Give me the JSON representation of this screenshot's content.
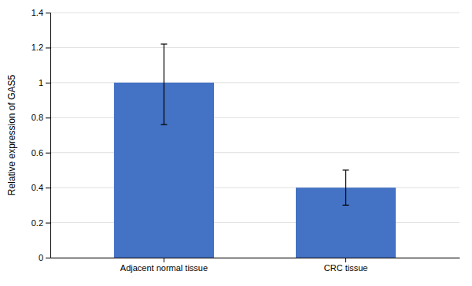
{
  "chart_data": {
    "type": "bar",
    "categories": [
      "Adjacent normal tissue",
      "CRC tissue"
    ],
    "values": [
      1.0,
      0.4
    ],
    "errors_lower": [
      0.24,
      0.1
    ],
    "errors_upper": [
      0.22,
      0.1
    ],
    "color": "#4472C4",
    "ylabel": "Relative expression of GAS5",
    "ylim": [
      0,
      1.4
    ],
    "yticks": [
      0,
      0.2,
      0.4,
      0.6,
      0.8,
      1,
      1.2,
      1.4
    ],
    "grid": true
  }
}
